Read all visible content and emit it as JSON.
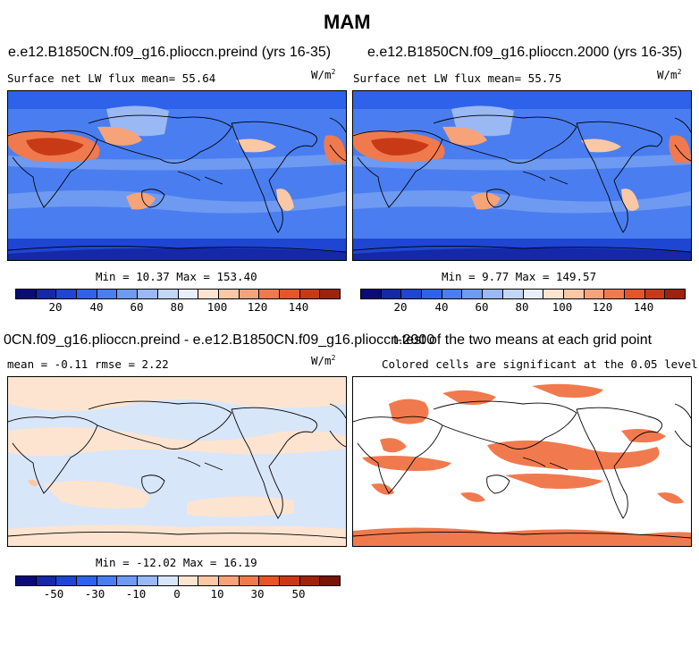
{
  "page_title": "MAM",
  "panels": {
    "p1": {
      "title": "e.e12.B1850CN.f09_g16.plioccn.preind (yrs 16-35)",
      "stat_left": "Surface net LW flux mean=   55.64",
      "units": "W/m",
      "units_exp": "2",
      "minmax": "Min =  10.37 Max = 153.40"
    },
    "p2": {
      "title": "e.e12.B1850CN.f09_g16.plioccn.2000 (yrs 16-35)",
      "stat_left": "Surface net LW flux mean=   55.75",
      "units": "W/m",
      "units_exp": "2",
      "minmax": "Min =   9.77 Max = 149.57"
    },
    "p3": {
      "title": "0CN.f09_g16.plioccn.preind - e.e12.B1850CN.f09_g16.plioccn.2000",
      "stat_left": "mean =  -0.11    rmse =   2.22",
      "units": "W/m",
      "units_exp": "2",
      "minmax": "Min = -12.02 Max =  16.19"
    },
    "p4": {
      "title": "t-test of the two means at each grid point",
      "stat_left": "Colored cells are significant at the 0.05 level"
    }
  },
  "colorbar_top": {
    "labels": [
      "20",
      "40",
      "60",
      "80",
      "100",
      "120",
      "140"
    ],
    "colors": [
      "#0a0a7a",
      "#1428a8",
      "#1e46d2",
      "#2e62ea",
      "#4a7ef0",
      "#6e9af2",
      "#9ab8f4",
      "#c4d6f6",
      "#e8eefa",
      "#fde4d0",
      "#fbc8a6",
      "#f6a37a",
      "#f07a4e",
      "#e4562a",
      "#c83a16",
      "#a0220c"
    ]
  },
  "colorbar_bottom": {
    "labels": [
      "-50",
      "-30",
      "-10",
      "0",
      "10",
      "30",
      "50"
    ],
    "colors": [
      "#0a0a7a",
      "#1428a8",
      "#1e46d2",
      "#2e62ea",
      "#4a7ef0",
      "#6e9af2",
      "#9ab8f4",
      "#d8e6fa",
      "#fde4d0",
      "#fbc8a6",
      "#f6a37a",
      "#f07a4e",
      "#e4562a",
      "#c83a16",
      "#a0220c",
      "#7a1406"
    ]
  }
}
